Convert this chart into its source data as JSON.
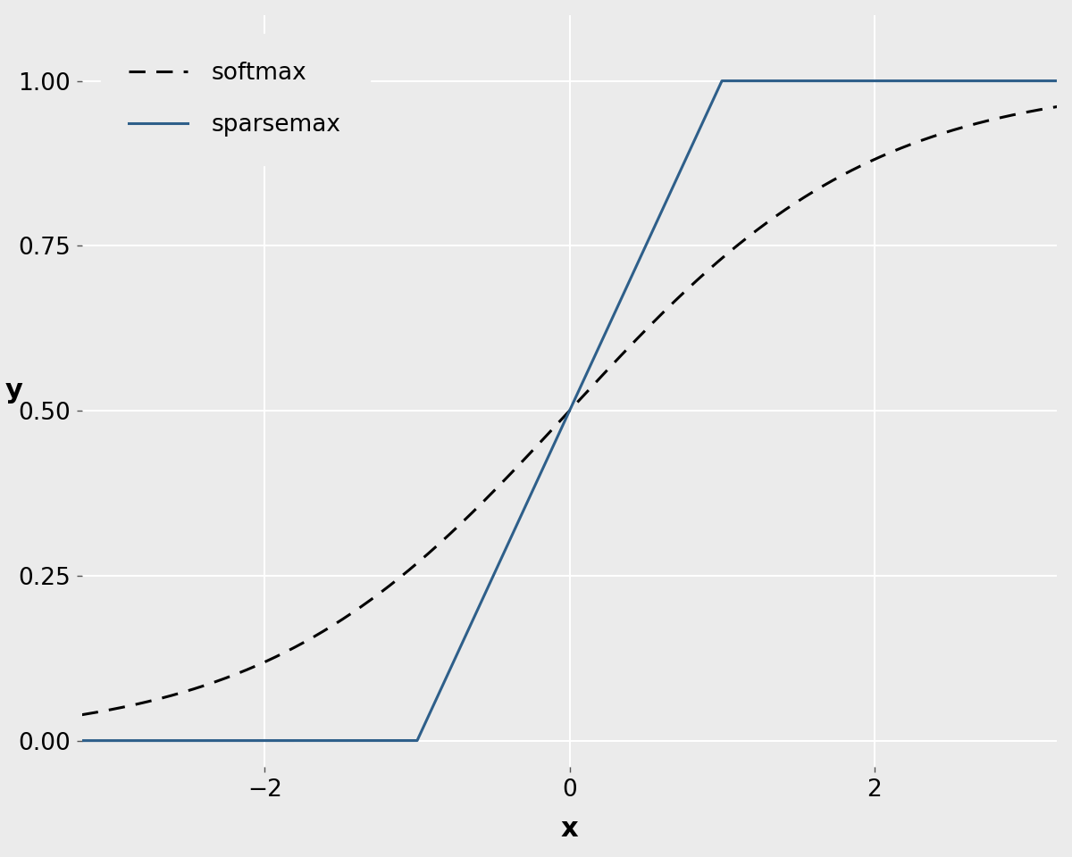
{
  "title": "",
  "xlabel": "x",
  "ylabel": "y",
  "xlim": [
    -3.2,
    3.2
  ],
  "ylim": [
    -0.04,
    1.1
  ],
  "x_ticks": [
    -2,
    0,
    2
  ],
  "y_ticks": [
    0.0,
    0.25,
    0.5,
    0.75,
    1.0
  ],
  "panel_background": "#EBEBEB",
  "fig_background": "#EBEBEB",
  "grid_color": "#FFFFFF",
  "grid_linewidth": 1.5,
  "softmax_color": "#000000",
  "softmax_linestyle": "dashed",
  "softmax_linewidth": 2.2,
  "sparsemax_color": "#2E5F8A",
  "sparsemax_linestyle": "solid",
  "sparsemax_linewidth": 2.2,
  "legend_softmax": "softmax",
  "legend_sparsemax": "sparsemax",
  "axis_label_fontsize": 22,
  "tick_fontsize": 19,
  "legend_fontsize": 19,
  "legend_bg": "#EBEBEB",
  "legend_edge": "#EBEBEB"
}
